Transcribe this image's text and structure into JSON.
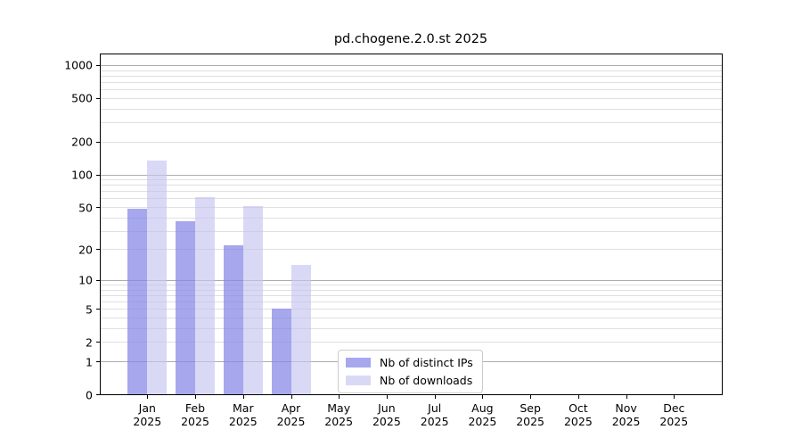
{
  "title": "pd.chogene.2.0.st 2025",
  "chart_data": {
    "type": "bar",
    "title": "pd.chogene.2.0.st 2025",
    "xlabel": "",
    "ylabel": "",
    "y_scale": "log10(value+1)",
    "ylim": [
      0,
      1250
    ],
    "grid": "horizontal major+minor",
    "legend_position": "inside bottom-center",
    "categories": [
      {
        "month": "Jan",
        "year": "2025"
      },
      {
        "month": "Feb",
        "year": "2025"
      },
      {
        "month": "Mar",
        "year": "2025"
      },
      {
        "month": "Apr",
        "year": "2025"
      },
      {
        "month": "May",
        "year": "2025"
      },
      {
        "month": "Jun",
        "year": "2025"
      },
      {
        "month": "Jul",
        "year": "2025"
      },
      {
        "month": "Aug",
        "year": "2025"
      },
      {
        "month": "Sep",
        "year": "2025"
      },
      {
        "month": "Oct",
        "year": "2025"
      },
      {
        "month": "Nov",
        "year": "2025"
      },
      {
        "month": "Dec",
        "year": "2025"
      }
    ],
    "series": [
      {
        "name": "Nb of distinct IPs",
        "color": "#a7a7ee",
        "values": [
          48,
          37,
          22,
          5,
          0,
          0,
          0,
          0,
          0,
          0,
          0,
          0
        ]
      },
      {
        "name": "Nb of downloads",
        "color": "#d9d9f6",
        "values": [
          134,
          62,
          51,
          14,
          0,
          0,
          0,
          0,
          0,
          0,
          0,
          0
        ]
      }
    ],
    "y_ticks": [
      0,
      1,
      2,
      5,
      10,
      20,
      50,
      100,
      200,
      500,
      1000
    ],
    "y_major_grid": [
      1,
      10,
      100,
      1000
    ],
    "y_minor_grid": [
      2,
      3,
      4,
      5,
      6,
      7,
      8,
      9,
      20,
      30,
      40,
      50,
      60,
      70,
      80,
      90,
      200,
      300,
      400,
      500,
      600,
      700,
      800,
      900
    ],
    "colors": {
      "axis": "#000000",
      "major_grid": "#c3c3c3",
      "minor_grid": "#ececec",
      "legend_border": "#cccccc",
      "background": "#ffffff"
    }
  }
}
